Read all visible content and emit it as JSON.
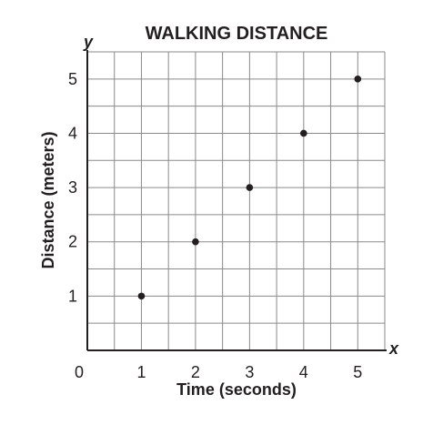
{
  "chart_data": {
    "type": "scatter",
    "title": "WALKING DISTANCE",
    "xlabel": "Time (seconds)",
    "ylabel": "Distance (meters)",
    "x_axis_var": "x",
    "y_axis_var": "y",
    "xlim": [
      0,
      5.5
    ],
    "ylim": [
      0,
      5.5
    ],
    "grid": true,
    "grid_step": 0.5,
    "x_ticks": [
      "1",
      "2",
      "3",
      "4",
      "5"
    ],
    "y_ticks": [
      "1",
      "2",
      "3",
      "4",
      "5"
    ],
    "origin_label": "0",
    "series": [
      {
        "points": [
          {
            "x": 1,
            "y": 1
          },
          {
            "x": 2,
            "y": 2
          },
          {
            "x": 3,
            "y": 3
          },
          {
            "x": 4,
            "y": 4
          },
          {
            "x": 5,
            "y": 5
          }
        ]
      }
    ],
    "colors": {
      "point": "#231f20",
      "grid": "#8a8a8a",
      "axis": "#231f20"
    }
  }
}
